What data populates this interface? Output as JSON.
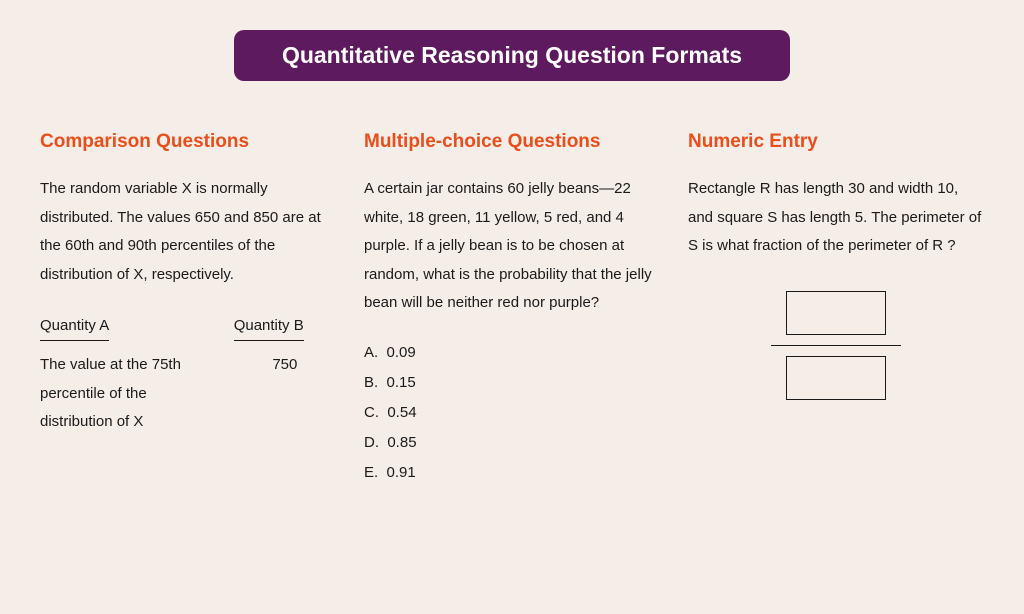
{
  "colors": {
    "background": "#f4ede8",
    "banner_bg": "#5e1a5e",
    "banner_text": "#ffffff",
    "heading": "#e94e1b",
    "body_text": "#1a1a1a"
  },
  "title": "Quantitative Reasoning Question Formats",
  "columns": {
    "comparison": {
      "heading": "Comparison Questions",
      "prompt": "The random variable X is normally distributed. The values 650 and 850 are at the 60th and 90th percentiles of the distribution of X, respectively.",
      "quantity_a_label": "Quantity A",
      "quantity_b_label": "Quantity B",
      "quantity_a_text": "The value at the 75th percentile of the distribution of X",
      "quantity_b_text": "750"
    },
    "multiple_choice": {
      "heading": "Multiple-choice Questions",
      "prompt": "A certain jar contains 60 jelly beans—22 white, 18 green, 11 yellow, 5 red, and 4 purple. If a jelly bean is to be chosen at random, what is the probability that the jelly bean will be neither red nor purple?",
      "choices": [
        {
          "letter": "A.",
          "text": "0.09"
        },
        {
          "letter": "B.",
          "text": "0.15"
        },
        {
          "letter": "C.",
          "text": "0.54"
        },
        {
          "letter": "D.",
          "text": "0.85"
        },
        {
          "letter": "E.",
          "text": "0.91"
        }
      ]
    },
    "numeric_entry": {
      "heading": "Numeric Entry",
      "prompt": "Rectangle R has length 30 and width 10, and square S has length 5. The perimeter of S is what fraction of the perimeter of R ?",
      "numerator_value": "",
      "denominator_value": ""
    }
  }
}
